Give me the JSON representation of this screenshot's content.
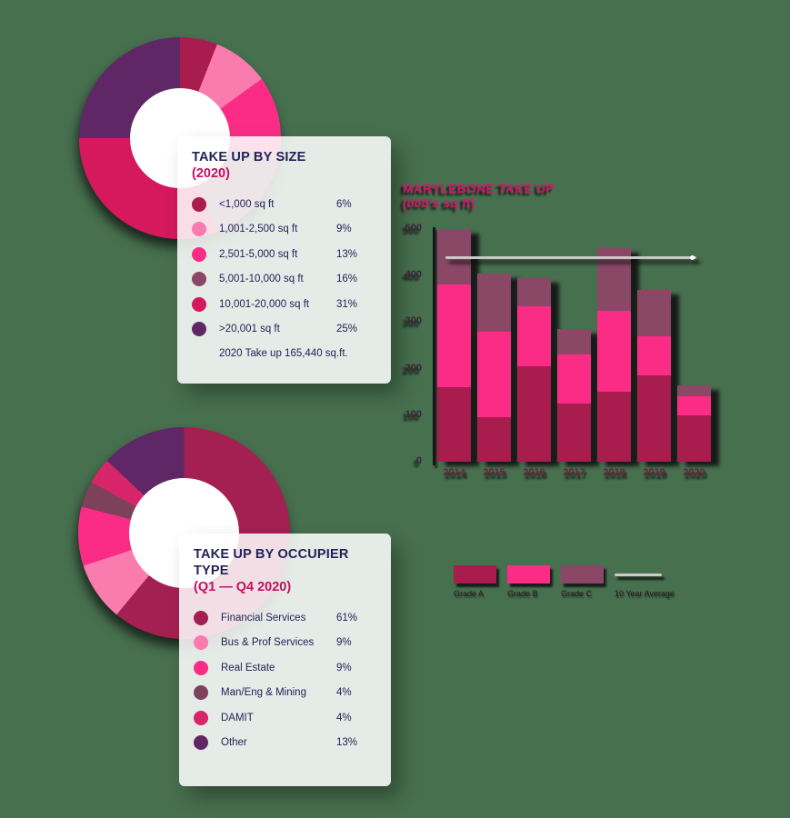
{
  "page": {
    "background": "#47704F"
  },
  "size_card": {
    "title": "TAKE UP BY SIZE",
    "subtitle": "(2020)",
    "footer": "2020 Take up 165,440 sq.ft.",
    "items": [
      {
        "label": "<1,000 sq ft",
        "value": "6%",
        "color": "#A81C4E"
      },
      {
        "label": "1,001-2,500 sq ft",
        "value": "9%",
        "color": "#FA7BAE"
      },
      {
        "label": "2,501-5,000 sq ft",
        "value": "13%",
        "color": "#FB2C86"
      },
      {
        "label": "5,001-10,000 sq ft",
        "value": "16%",
        "color": "#8A4866"
      },
      {
        "label": "10,001-20,000 sq ft",
        "value": "31%",
        "color": "#D6185C"
      },
      {
        "label": ">20,001 sq ft",
        "value": "25%",
        "color": "#5F2766"
      }
    ]
  },
  "occupier_card": {
    "title": "TAKE UP BY OCCUPIER TYPE",
    "subtitle": "(Q1 — Q4 2020)",
    "items": [
      {
        "label": "Financial Services",
        "value": "61%",
        "color": "#A52052"
      },
      {
        "label": "Bus & Prof Services",
        "value": "9%",
        "color": "#FA7BAE"
      },
      {
        "label": "Real Estate",
        "value": "9%",
        "color": "#FB2C86"
      },
      {
        "label": "Man/Eng & Mining",
        "value": "4%",
        "color": "#7D4259"
      },
      {
        "label": "DAMIT",
        "value": "4%",
        "color": "#D6256B"
      },
      {
        "label": "Other",
        "value": "13%",
        "color": "#5F2766"
      }
    ]
  },
  "bar_section": {
    "title_line1": "MARYLEBONE TAKE UP",
    "title_line2": "(000's sq ft)",
    "legend": [
      {
        "label": "Grade A",
        "color": "#A81C4E",
        "type": "swatch"
      },
      {
        "label": "Grade B",
        "color": "#FB2C86",
        "type": "swatch"
      },
      {
        "label": "Grade C",
        "color": "#8A4866",
        "type": "swatch"
      },
      {
        "label": "10 Year Average",
        "color": "#C9C9C9",
        "type": "line"
      }
    ]
  },
  "chart_data": [
    {
      "type": "pie",
      "title": "TAKE UP BY SIZE (2020)",
      "labels": [
        "<1,000 sq ft",
        "1,001-2,500 sq ft",
        "2,501-5,000 sq ft",
        "5,001-10,000 sq ft",
        "10,001-20,000 sq ft",
        ">20,001 sq ft"
      ],
      "values": [
        6,
        9,
        13,
        16,
        31,
        25
      ],
      "colors": [
        "#A81C4E",
        "#FA7BAE",
        "#FB2C86",
        "#8A4866",
        "#D6185C",
        "#5F2766"
      ],
      "donut": true,
      "start_angle_deg": 0,
      "annotation": "2020 Take up 165,440 sq.ft."
    },
    {
      "type": "pie",
      "title": "TAKE UP BY OCCUPIER TYPE (Q1 — Q4 2020)",
      "labels": [
        "Financial Services",
        "Bus & Prof Services",
        "Real Estate",
        "Man/Eng & Mining",
        "DAMIT",
        "Other"
      ],
      "values": [
        61,
        9,
        9,
        4,
        4,
        13
      ],
      "colors": [
        "#A52052",
        "#FA7BAE",
        "#FB2C86",
        "#7D4259",
        "#D6256B",
        "#5F2766"
      ],
      "donut": true,
      "start_angle_deg": 0
    },
    {
      "type": "bar",
      "stacked": true,
      "title": "MARYLEBONE TAKE UP (000's sq ft)",
      "categories": [
        "2014",
        "2015",
        "2016",
        "2017",
        "2018",
        "2019",
        "2020"
      ],
      "series": [
        {
          "name": "Grade A",
          "color": "#A81C4E",
          "values": [
            160,
            95,
            205,
            125,
            150,
            185,
            100
          ]
        },
        {
          "name": "Grade B",
          "color": "#FB2C86",
          "values": [
            220,
            185,
            130,
            105,
            175,
            85,
            40
          ]
        },
        {
          "name": "Grade C",
          "color": "#8A4866",
          "values": [
            120,
            125,
            60,
            55,
            135,
            100,
            25
          ]
        }
      ],
      "totals": [
        500,
        405,
        395,
        285,
        460,
        370,
        165
      ],
      "average_line": {
        "label": "10 Year Average",
        "value": 440,
        "color": "#C9C9C9"
      },
      "y_ticks": [
        0,
        100,
        200,
        300,
        400,
        500
      ],
      "ylim": [
        0,
        500
      ],
      "grid": false,
      "legend_position": "bottom"
    }
  ]
}
